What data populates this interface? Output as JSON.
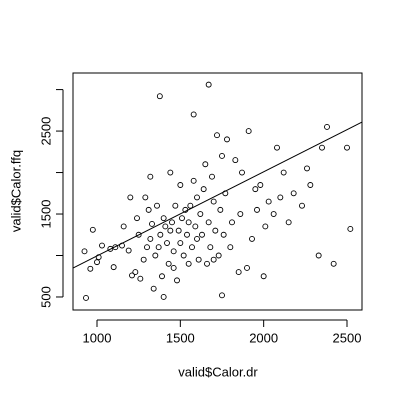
{
  "chart_data": {
    "type": "scatter",
    "x_label": "valid$Calor.dr",
    "y_label": "valid$Calor.ffq",
    "xlim": [
      856,
      2590
    ],
    "ylim": [
      343,
      3200
    ],
    "xticks": [
      1000,
      1500,
      2000,
      2500
    ],
    "yticks": [
      500,
      {
        "value": 1000,
        "label": null
      },
      1500,
      {
        "value": 2000,
        "label": null
      },
      2500,
      {
        "value": 3000,
        "label": null
      }
    ],
    "color": "#000000",
    "x": [
      934,
      925,
      960,
      975,
      1000,
      1010,
      1030,
      1080,
      1100,
      1110,
      1150,
      1160,
      1190,
      1200,
      1210,
      1230,
      1240,
      1250,
      1260,
      1280,
      1290,
      1300,
      1310,
      1320,
      1320,
      1330,
      1340,
      1350,
      1360,
      1370,
      1377,
      1380,
      1390,
      1400,
      1400,
      1410,
      1420,
      1430,
      1440,
      1440,
      1450,
      1460,
      1460,
      1470,
      1480,
      1490,
      1500,
      1500,
      1510,
      1520,
      1530,
      1540,
      1550,
      1550,
      1560,
      1570,
      1580,
      1580,
      1590,
      1600,
      1600,
      1610,
      1620,
      1630,
      1640,
      1650,
      1660,
      1670,
      1670,
      1680,
      1690,
      1700,
      1700,
      1710,
      1720,
      1730,
      1740,
      1750,
      1750,
      1760,
      1770,
      1780,
      1800,
      1810,
      1830,
      1850,
      1860,
      1870,
      1900,
      1910,
      1930,
      1950,
      1960,
      1980,
      2000,
      2010,
      2030,
      2060,
      2080,
      2100,
      2120,
      2150,
      2180,
      2230,
      2260,
      2280,
      2330,
      2350,
      2380,
      2420,
      2500,
      2520
    ],
    "values": [
      488,
      1050,
      840,
      1310,
      920,
      980,
      1120,
      1080,
      860,
      1100,
      1120,
      1350,
      1060,
      1700,
      760,
      800,
      1450,
      1250,
      720,
      950,
      1700,
      1100,
      1550,
      1200,
      1950,
      1380,
      600,
      1000,
      1600,
      1100,
      2920,
      1250,
      750,
      500,
      1450,
      1350,
      1150,
      900,
      1300,
      2000,
      1400,
      850,
      1050,
      1600,
      700,
      1300,
      1150,
      1850,
      1450,
      1000,
      1550,
      1250,
      900,
      1400,
      1600,
      1100,
      2700,
      1900,
      1350,
      1200,
      1700,
      950,
      1500,
      1250,
      1800,
      2100,
      900,
      3060,
      1400,
      1100,
      1950,
      1650,
      950,
      1300,
      2450,
      1000,
      1550,
      520,
      2200,
      1250,
      1750,
      2400,
      1100,
      1400,
      2150,
      800,
      1500,
      2000,
      850,
      2500,
      1200,
      1800,
      1550,
      1850,
      750,
      1350,
      1650,
      1500,
      2300,
      1700,
      2000,
      1400,
      1750,
      1600,
      2050,
      1850,
      1000,
      2300,
      2550,
      900,
      2300,
      1320
    ],
    "fit_line": {
      "x": [
        856,
        2590
      ],
      "y": [
        849,
        2608
      ]
    }
  }
}
